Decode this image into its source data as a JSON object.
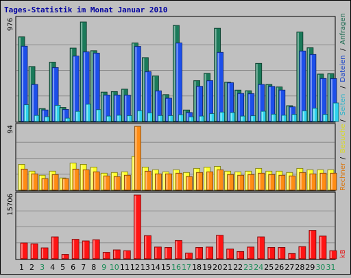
{
  "chart_data": {
    "type": "bar",
    "title": "Tages-Statistik im Monat Januar 2010",
    "categories": [
      "1",
      "2",
      "3",
      "4",
      "5",
      "6",
      "7",
      "8",
      "9",
      "10",
      "11",
      "12",
      "13",
      "14",
      "15",
      "16",
      "17",
      "18",
      "19",
      "20",
      "21",
      "22",
      "23",
      "24",
      "25",
      "26",
      "27",
      "28",
      "29",
      "30",
      "31"
    ],
    "weekend_days": [
      "3",
      "9",
      "10",
      "16",
      "17",
      "23",
      "24",
      "30",
      "31"
    ],
    "panels": [
      {
        "name": "top",
        "ymax_label": "976",
        "ymax": 976,
        "series": [
          {
            "name": "Anfragen",
            "color": "#1b7a5a",
            "values": [
              808,
              525,
              124,
              567,
              134,
              701,
              950,
              676,
              281,
              286,
              309,
              750,
              610,
              435,
              257,
              917,
              110,
              390,
              460,
              890,
              376,
              300,
              294,
              555,
              354,
              330,
              151,
              854,
              704,
              453,
              457
            ]
          },
          {
            "name": "Dateien",
            "color": "#1d4fea",
            "values": [
              719,
              354,
              110,
              515,
              115,
              625,
              665,
              653,
              253,
              253,
              252,
              717,
              476,
              293,
              223,
              750,
              86,
              336,
              390,
              660,
              370,
              268,
              266,
              354,
              335,
              300,
              140,
              673,
              640,
              411,
              410
            ]
          },
          {
            "name": "Seiten",
            "color": "#2dd2ec",
            "values": [
              160,
              58,
              46,
              154,
              32,
              97,
              165,
              113,
              52,
              60,
              56,
              103,
              82,
              57,
              56,
              65,
              45,
              52,
              75,
              90,
              86,
              52,
              55,
              98,
              70,
              60,
              68,
              102,
              127,
              68,
              177
            ]
          }
        ]
      },
      {
        "name": "middle",
        "ymax_label": "94",
        "ymax": 94,
        "series": [
          {
            "name": "Besuche",
            "color": "#ffff2c",
            "values": [
              38,
              28,
              22,
              28,
              18,
              40,
              38,
              34,
              25,
              26,
              27,
              50,
              34,
              30,
              27,
              30,
              26,
              32,
              34,
              35,
              28,
              27,
              28,
              32,
              28,
              28,
              26,
              32,
              30,
              30,
              30
            ]
          },
          {
            "name": "Rechner",
            "color": "#ff8c14",
            "values": [
              31,
              24,
              17,
              23,
              17,
              31,
              30,
              27,
              21,
              20,
              22,
              94,
              28,
              24,
              24,
              25,
              20,
              26,
              27,
              30,
              23,
              22,
              23,
              25,
              23,
              22,
              21,
              26,
              24,
              25,
              25
            ]
          }
        ]
      },
      {
        "name": "bottom",
        "ymax_label": "15706",
        "ymax": 15706,
        "series": [
          {
            "name": "kB",
            "color": "#ff1414",
            "values": [
              3900,
              3700,
              2700,
              5400,
              1100,
              4800,
              4400,
              4700,
              1600,
              2200,
              2000,
              15706,
              5700,
              2900,
              2800,
              4500,
              1400,
              2800,
              2900,
              5800,
              2400,
              1800,
              2900,
              5400,
              2800,
              2800,
              1300,
              3000,
              7000,
              5600,
              2000
            ]
          }
        ]
      }
    ],
    "legend": {
      "top": [
        "Anfragen",
        "/",
        "Dateien",
        "/",
        "Seiten",
        "/",
        "Besuche",
        "/",
        "Rechner"
      ],
      "bottom": "kB"
    },
    "colors": {
      "plot_bg": "#c0c0c0",
      "border_outer": "#000000",
      "title_color": "#0000a0",
      "weekday_label": "#000000",
      "weekend_label": "#178a55",
      "grid": "#8a8a8a"
    }
  }
}
